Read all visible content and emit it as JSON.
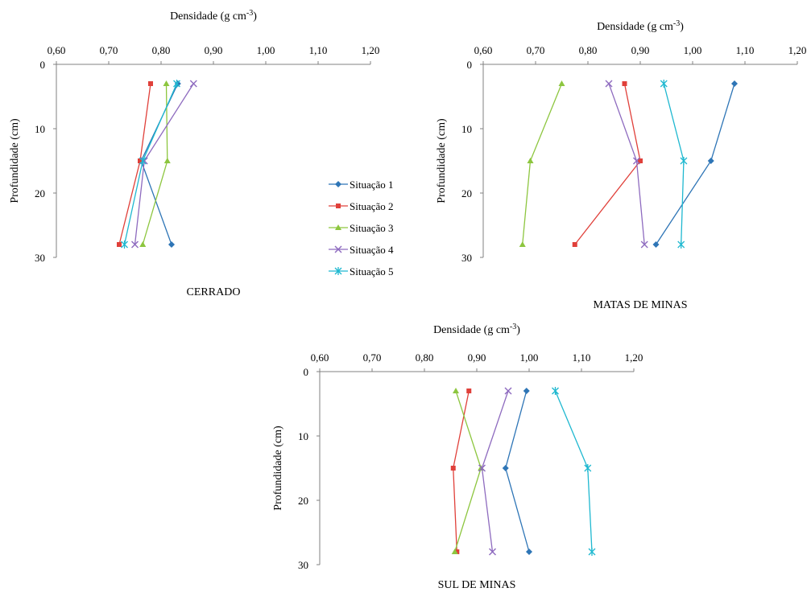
{
  "shared": {
    "x_ticks": [
      "0,60",
      "0,70",
      "0,80",
      "0,90",
      "1,00",
      "1,10",
      "1,20"
    ],
    "y_ticks": [
      "0",
      "10",
      "20",
      "30"
    ],
    "xlabel_main": "Densidade  (g cm",
    "xlabel_sup": "-3",
    "xlabel_end": ")"
  },
  "legend": {
    "placement": "between top charts",
    "items": [
      "Situação 1",
      "Situação 2",
      "Situação 3",
      "Situação 4",
      "Situação 5"
    ]
  },
  "colors": {
    "Situação 1": "#2E75B6",
    "Situação 2": "#E0403A",
    "Situação 3": "#8DC63F",
    "Situação 4": "#8E6BBF",
    "Situação 5": "#1FB8D0"
  },
  "chart_data": [
    {
      "type": "line",
      "title": "CERRADO",
      "xlabel": "Densidade (g cm-3)",
      "ylabel": "Profundidade  (cm)",
      "xlim": [
        0.6,
        1.2
      ],
      "ylim": [
        0,
        30
      ],
      "y_reversed": true,
      "depths": [
        3,
        15,
        28
      ],
      "series": [
        {
          "name": "Situação 1",
          "values": [
            0.832,
            0.762,
            0.82
          ]
        },
        {
          "name": "Situação 2",
          "values": [
            0.78,
            0.76,
            0.72
          ]
        },
        {
          "name": "Situação 3",
          "values": [
            0.81,
            0.812,
            0.765
          ]
        },
        {
          "name": "Situação 4",
          "values": [
            0.862,
            0.768,
            0.75
          ]
        },
        {
          "name": "Situação 5",
          "values": [
            0.83,
            0.765,
            0.73
          ]
        }
      ]
    },
    {
      "type": "line",
      "title": "MATAS DE MINAS",
      "xlabel": "Densidade (g cm-3)",
      "ylabel": "Profundidade  (cm)",
      "xlim": [
        0.6,
        1.2
      ],
      "ylim": [
        0,
        30
      ],
      "y_reversed": true,
      "depths": [
        3,
        15,
        28
      ],
      "series": [
        {
          "name": "Situação 1",
          "values": [
            1.08,
            1.035,
            0.93
          ]
        },
        {
          "name": "Situação 2",
          "values": [
            0.87,
            0.9,
            0.775
          ]
        },
        {
          "name": "Situação 3",
          "values": [
            0.75,
            0.69,
            0.675
          ]
        },
        {
          "name": "Situação 4",
          "values": [
            0.84,
            0.893,
            0.908
          ]
        },
        {
          "name": "Situação 5",
          "values": [
            0.945,
            0.983,
            0.978
          ]
        }
      ]
    },
    {
      "type": "line",
      "title": "SUL DE MINAS",
      "xlabel": "Densidade (g cm-3)",
      "ylabel": "Profundidade  (cm)",
      "xlim": [
        0.6,
        1.2
      ],
      "ylim": [
        0,
        30
      ],
      "y_reversed": true,
      "depths": [
        3,
        15,
        28
      ],
      "series": [
        {
          "name": "Situação 1",
          "values": [
            0.995,
            0.955,
            1.0
          ]
        },
        {
          "name": "Situação 2",
          "values": [
            0.885,
            0.855,
            0.862
          ]
        },
        {
          "name": "Situação 3",
          "values": [
            0.86,
            0.908,
            0.858
          ]
        },
        {
          "name": "Situação 4",
          "values": [
            0.96,
            0.91,
            0.93
          ]
        },
        {
          "name": "Situação 5",
          "values": [
            1.05,
            1.112,
            1.12
          ]
        }
      ]
    }
  ]
}
